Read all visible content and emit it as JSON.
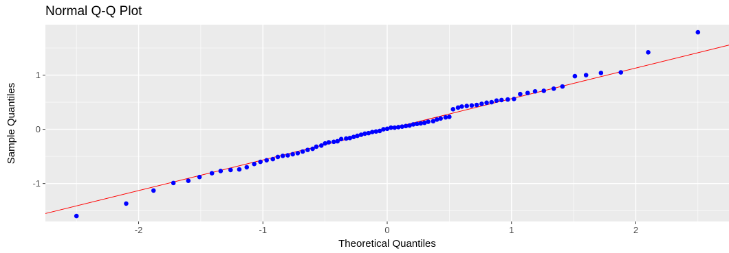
{
  "chart_data": {
    "type": "scatter",
    "title": "Normal Q-Q Plot",
    "xlabel": "Theoretical Quantiles",
    "ylabel": "Sample Quantiles",
    "xlim": [
      -2.75,
      2.75
    ],
    "ylim": [
      -1.7,
      1.93
    ],
    "x_ticks": [
      -2,
      -1,
      0,
      1,
      2
    ],
    "x_tick_labels": [
      "-2",
      "-1",
      "0",
      "1",
      "2"
    ],
    "y_ticks": [
      -1,
      0,
      1
    ],
    "y_tick_labels": [
      "-1",
      "0",
      "1"
    ],
    "grid": true,
    "legend": "none",
    "point_color": "#0000ff",
    "line_color": "#ff0000",
    "reference_line": {
      "intercept": 0.0,
      "slope": 0.565
    },
    "points": {
      "x": [
        -2.5,
        -2.1,
        -1.88,
        -1.72,
        -1.6,
        -1.51,
        -1.41,
        -1.34,
        -1.26,
        -1.19,
        -1.13,
        -1.07,
        -1.02,
        -0.97,
        -0.92,
        -0.88,
        -0.84,
        -0.8,
        -0.76,
        -0.72,
        -0.68,
        -0.64,
        -0.6,
        -0.57,
        -0.53,
        -0.5,
        -0.47,
        -0.43,
        -0.4,
        -0.37,
        -0.33,
        -0.3,
        -0.27,
        -0.24,
        -0.21,
        -0.18,
        -0.15,
        -0.12,
        -0.09,
        -0.06,
        -0.03,
        0.0,
        0.03,
        0.06,
        0.09,
        0.12,
        0.15,
        0.18,
        0.21,
        0.24,
        0.27,
        0.3,
        0.33,
        0.37,
        0.4,
        0.43,
        0.47,
        0.5,
        0.53,
        0.57,
        0.6,
        0.64,
        0.68,
        0.72,
        0.76,
        0.8,
        0.84,
        0.88,
        0.92,
        0.97,
        1.02,
        1.07,
        1.13,
        1.19,
        1.26,
        1.34,
        1.41,
        1.51,
        1.6,
        1.72,
        1.88,
        2.1,
        2.5
      ],
      "y": [
        -1.6,
        -1.37,
        -1.13,
        -0.99,
        -0.95,
        -0.88,
        -0.81,
        -0.77,
        -0.75,
        -0.74,
        -0.7,
        -0.64,
        -0.6,
        -0.57,
        -0.55,
        -0.51,
        -0.49,
        -0.48,
        -0.46,
        -0.44,
        -0.41,
        -0.38,
        -0.36,
        -0.32,
        -0.3,
        -0.26,
        -0.24,
        -0.23,
        -0.22,
        -0.18,
        -0.17,
        -0.16,
        -0.14,
        -0.12,
        -0.1,
        -0.08,
        -0.07,
        -0.05,
        -0.04,
        -0.03,
        0.0,
        0.01,
        0.03,
        0.03,
        0.04,
        0.05,
        0.06,
        0.07,
        0.09,
        0.1,
        0.11,
        0.12,
        0.14,
        0.15,
        0.18,
        0.2,
        0.22,
        0.23,
        0.37,
        0.4,
        0.42,
        0.43,
        0.44,
        0.45,
        0.47,
        0.49,
        0.5,
        0.53,
        0.54,
        0.55,
        0.56,
        0.65,
        0.67,
        0.7,
        0.71,
        0.75,
        0.79,
        0.98,
        1.0,
        1.04,
        1.05,
        1.42,
        1.79
      ]
    }
  }
}
